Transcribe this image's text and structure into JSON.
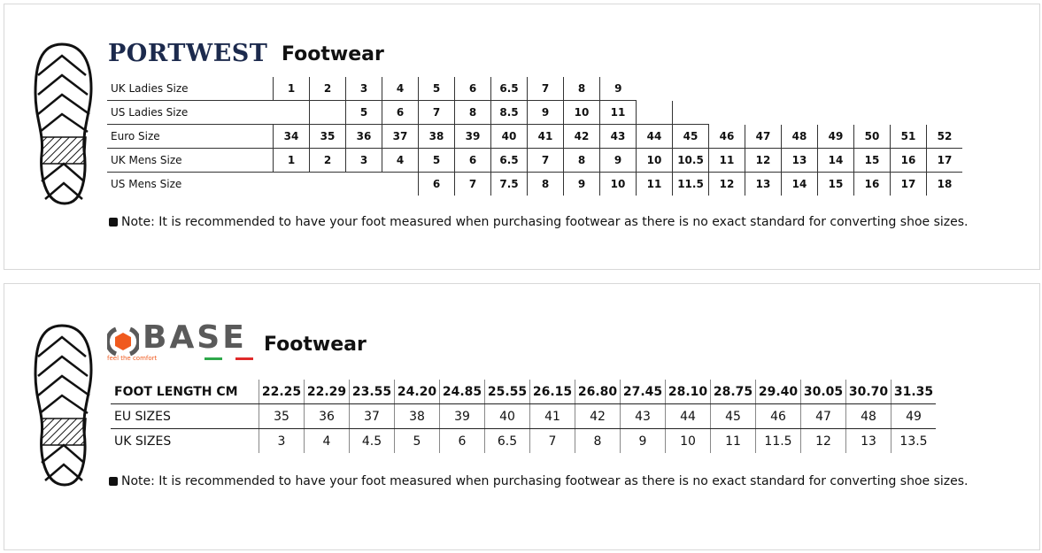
{
  "portwest": {
    "brand": "PORTWEST",
    "title": "Footwear",
    "rows": [
      {
        "label": "UK Ladies Size",
        "cells": [
          "1",
          "2",
          "3",
          "4",
          "5",
          "6",
          "6.5",
          "7",
          "8",
          "9"
        ]
      },
      {
        "label": "US Ladies Size",
        "cells": [
          "",
          "",
          "5",
          "6",
          "7",
          "8",
          "8.5",
          "9",
          "10",
          "11",
          "",
          ""
        ]
      },
      {
        "label": "Euro Size",
        "cells": [
          "34",
          "35",
          "36",
          "37",
          "38",
          "39",
          "40",
          "41",
          "42",
          "43",
          "44",
          "45",
          "46",
          "47",
          "48",
          "49",
          "50",
          "51",
          "52"
        ]
      },
      {
        "label": "UK Mens Size",
        "cells": [
          "1",
          "2",
          "3",
          "4",
          "5",
          "6",
          "6.5",
          "7",
          "8",
          "9",
          "10",
          "10.5",
          "11",
          "12",
          "13",
          "14",
          "15",
          "16",
          "17"
        ]
      },
      {
        "label": "US Mens Size",
        "cells": [
          "",
          "",
          "",
          "",
          "6",
          "7",
          "7.5",
          "8",
          "9",
          "10",
          "11",
          "11.5",
          "12",
          "13",
          "14",
          "15",
          "16",
          "17",
          "18"
        ]
      }
    ],
    "note": "Note: It is recommended to have your foot measured when purchasing footwear as there is no exact standard for converting shoe sizes."
  },
  "base": {
    "brand": "BASE",
    "tagline": "feel the comfort",
    "title": "Footwear",
    "rows": [
      {
        "label": "FOOT LENGTH CM",
        "cells": [
          "22.25",
          "22.29",
          "23.55",
          "24.20",
          "24.85",
          "25.55",
          "26.15",
          "26.80",
          "27.45",
          "28.10",
          "28.75",
          "29.40",
          "30.05",
          "30.70",
          "31.35"
        ]
      },
      {
        "label": "EU SIZES",
        "cells": [
          "35",
          "36",
          "37",
          "38",
          "39",
          "40",
          "41",
          "42",
          "43",
          "44",
          "45",
          "46",
          "47",
          "48",
          "49"
        ]
      },
      {
        "label": "UK SIZES",
        "cells": [
          "3",
          "4",
          "4.5",
          "5",
          "6",
          "6.5",
          "7",
          "8",
          "9",
          "10",
          "11",
          "11.5",
          "12",
          "13",
          "13.5"
        ]
      }
    ],
    "note": "Note: It is recommended to have your foot measured when purchasing footwear as there is no exact standard for converting shoe sizes.",
    "colors": {
      "logo_orange": "#f05a1e",
      "logo_gray": "#5a5a5a"
    }
  }
}
